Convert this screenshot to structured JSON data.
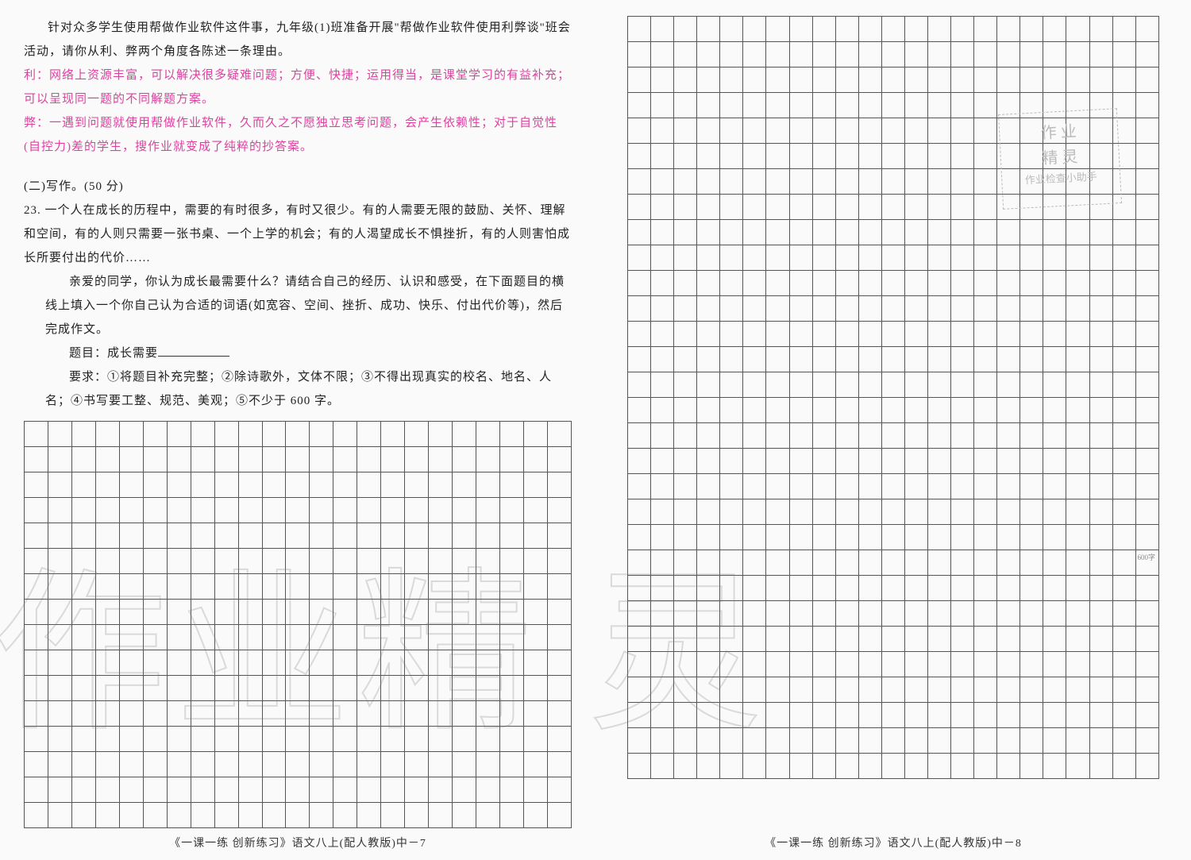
{
  "left": {
    "intro1": "针对众多学生使用帮做作业软件这件事，九年级(1)班准备开展\"帮做作业软件使用利弊谈\"班会活动，请你从利、弊两个角度各陈述一条理由。",
    "answer_li_label": "利：",
    "answer_li": "网络上资源丰富，可以解决很多疑难问题；方便、快捷；运用得当，是课堂学习的有益补充；可以呈现同一题的不同解题方案。",
    "answer_bi_label": "弊：",
    "answer_bi": "一遇到问题就使用帮做作业软件，久而久之不愿独立思考问题，会产生依赖性；对于自觉性(自控力)差的学生，搜作业就变成了纯粹的抄答案。",
    "section": "(二)写作。(50 分)",
    "q23num": "23. ",
    "q23p1": "一个人在成长的历程中，需要的有时很多，有时又很少。有的人需要无限的鼓励、关怀、理解和空间，有的人则只需要一张书桌、一个上学的机会；有的人渴望成长不惧挫折，有的人则害怕成长所要付出的代价……",
    "q23p2": "亲爱的同学，你认为成长最需要什么？请结合自己的经历、认识和感受，在下面题目的横线上填入一个你自己认为合适的词语(如宽容、空间、挫折、成功、快乐、付出代价等)，然后完成作文。",
    "q23title_label": "题目：成长需要",
    "q23req": "要求：①将题目补充完整；②除诗歌外，文体不限；③不得出现真实的校名、地名、人名；④书写要工整、规范、美观；⑤不少于 600 字。",
    "footer": "《一课一练 创新练习》语文八上(配人教版)中－7",
    "grid": {
      "rows": 16,
      "cols": 23
    },
    "watermark": "作业精"
  },
  "right": {
    "footer": "《一课一练 创新练习》语文八上(配人教版)中－8",
    "grid": {
      "rows": 30,
      "cols": 23
    },
    "watermark": "灵",
    "stamp_l1": "作 业",
    "stamp_l2": "精 灵",
    "stamp_l3": "作业检查小助手",
    "marker600": "600字"
  },
  "style": {
    "text_color": "#222222",
    "answer_color": "#e040a0",
    "grid_border": "#555555",
    "background": "#fafafa",
    "font_size_pt": 11,
    "watermark_color": "rgba(120,120,120,0.2)"
  }
}
